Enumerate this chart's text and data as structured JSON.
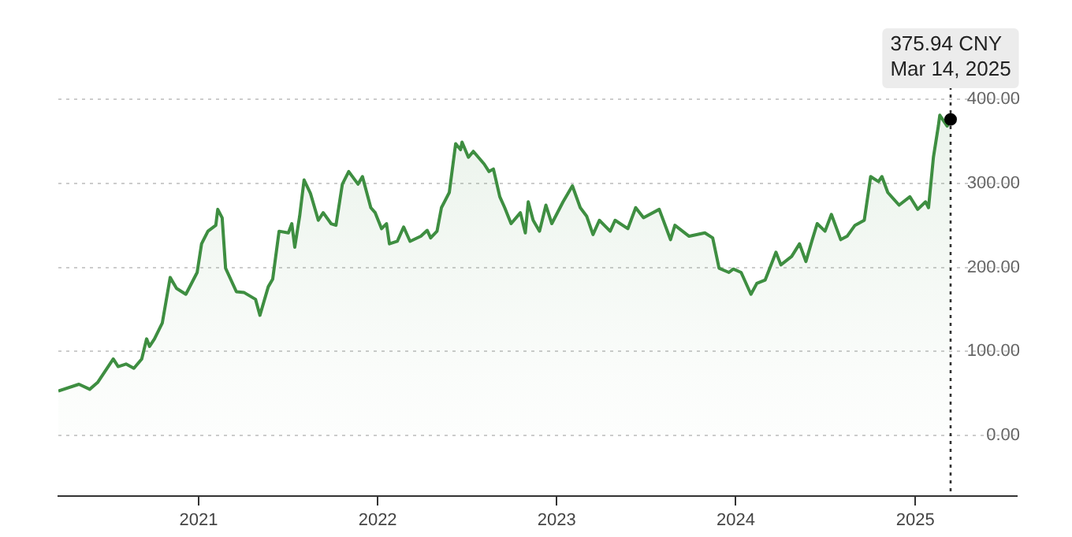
{
  "chart_data": {
    "type": "area",
    "x": [
      "2020-03-21",
      "2020-05-02",
      "2020-05-24",
      "2020-06-09",
      "2020-07-11",
      "2020-07-21",
      "2020-08-06",
      "2020-08-22",
      "2020-09-07",
      "2020-09-17",
      "2020-09-23",
      "2020-10-03",
      "2020-10-19",
      "2020-11-04",
      "2020-11-17",
      "2020-12-06",
      "2020-12-29",
      "2021-01-07",
      "2021-01-20",
      "2021-02-05",
      "2021-02-09",
      "2021-02-18",
      "2021-02-25",
      "2021-03-19",
      "2021-04-04",
      "2021-04-27",
      "2021-05-06",
      "2021-05-23",
      "2021-06-01",
      "2021-06-14",
      "2021-07-03",
      "2021-07-10",
      "2021-07-16",
      "2021-07-26",
      "2021-08-04",
      "2021-08-17",
      "2021-09-02",
      "2021-09-12",
      "2021-09-28",
      "2021-10-08",
      "2021-10-21",
      "2021-11-03",
      "2021-11-22",
      "2021-12-01",
      "2021-12-18",
      "2021-12-27",
      "2022-01-09",
      "2022-01-19",
      "2022-01-25",
      "2022-02-10",
      "2022-02-23",
      "2022-03-08",
      "2022-03-30",
      "2022-04-12",
      "2022-04-19",
      "2022-05-02",
      "2022-05-11",
      "2022-05-27",
      "2022-06-09",
      "2022-06-19",
      "2022-06-22",
      "2022-07-05",
      "2022-07-15",
      "2022-08-06",
      "2022-08-16",
      "2022-08-25",
      "2022-09-07",
      "2022-09-17",
      "2022-09-30",
      "2022-10-19",
      "2022-10-29",
      "2022-11-04",
      "2022-11-14",
      "2022-11-27",
      "2022-12-10",
      "2022-12-22",
      "2023-01-14",
      "2023-02-02",
      "2023-02-18",
      "2023-03-03",
      "2023-03-16",
      "2023-03-29",
      "2023-04-20",
      "2023-04-30",
      "2023-05-26",
      "2023-06-11",
      "2023-06-27",
      "2023-07-29",
      "2023-08-21",
      "2023-08-30",
      "2023-09-28",
      "2023-10-30",
      "2023-11-15",
      "2023-11-28",
      "2023-12-18",
      "2023-12-27",
      "2024-01-12",
      "2024-02-01",
      "2024-02-13",
      "2024-03-01",
      "2024-03-07",
      "2024-03-17",
      "2024-03-23",
      "2024-04-02",
      "2024-04-24",
      "2024-05-10",
      "2024-05-23",
      "2024-06-05",
      "2024-06-15",
      "2024-07-01",
      "2024-07-14",
      "2024-08-02",
      "2024-08-15",
      "2024-08-31",
      "2024-09-19",
      "2024-10-02",
      "2024-10-18",
      "2024-10-25",
      "2024-11-06",
      "2024-11-29",
      "2024-12-21",
      "2025-01-06",
      "2025-01-22",
      "2025-01-28",
      "2025-02-07",
      "2025-02-17",
      "2025-02-20",
      "2025-03-07",
      "2025-03-14"
    ],
    "series": [
      {
        "color": "#3e8e41",
        "values": [
          53,
          61,
          55,
          63,
          91,
          82,
          85,
          80,
          91,
          115,
          106,
          115,
          134,
          188,
          175,
          168,
          194,
          228,
          243,
          250,
          269,
          259,
          199,
          171,
          170,
          162,
          143,
          177,
          186,
          243,
          241,
          252,
          224,
          261,
          304,
          288,
          256,
          265,
          252,
          250,
          299,
          314,
          299,
          308,
          271,
          265,
          246,
          252,
          228,
          231,
          248,
          231,
          237,
          244,
          235,
          243,
          271,
          289,
          347,
          340,
          349,
          331,
          338,
          323,
          314,
          317,
          284,
          271,
          252,
          265,
          241,
          278,
          256,
          243,
          274,
          252,
          278,
          297,
          271,
          261,
          239,
          256,
          243,
          256,
          246,
          271,
          259,
          269,
          233,
          250,
          237,
          241,
          235,
          199,
          194,
          198,
          194,
          168,
          181,
          185,
          194,
          209,
          218,
          203,
          213,
          228,
          207,
          233,
          252,
          243,
          263,
          233,
          237,
          250,
          256,
          308,
          302,
          308,
          289,
          274,
          284,
          269,
          278,
          271,
          331,
          368,
          381,
          368,
          375.94
        ]
      }
    ],
    "xlim": [
      "2020-03-21",
      "2025-07-27"
    ],
    "xticks": [
      {
        "value": "2021-01-01",
        "label": "2021"
      },
      {
        "value": "2022-01-01",
        "label": "2022"
      },
      {
        "value": "2023-01-01",
        "label": "2023"
      },
      {
        "value": "2024-01-01",
        "label": "2024"
      },
      {
        "value": "2025-01-01",
        "label": "2025"
      }
    ],
    "ylim": [
      -72,
      400
    ],
    "yticks": [
      {
        "value": 0,
        "label": "0.00"
      },
      {
        "value": 100,
        "label": "100.00"
      },
      {
        "value": 200,
        "label": "200.00"
      },
      {
        "value": 300,
        "label": "300.00"
      },
      {
        "value": 400,
        "label": "400.00"
      }
    ],
    "grid": "y",
    "ref_lines": [
      {
        "axis": "x",
        "value": "2025-03-14",
        "color": "#333333",
        "line_style": "dotted"
      }
    ],
    "annotations": [
      {
        "text": "375.94 CNY\nMar 14, 2025",
        "x": "2025-03-14",
        "y": 375.94
      }
    ]
  }
}
